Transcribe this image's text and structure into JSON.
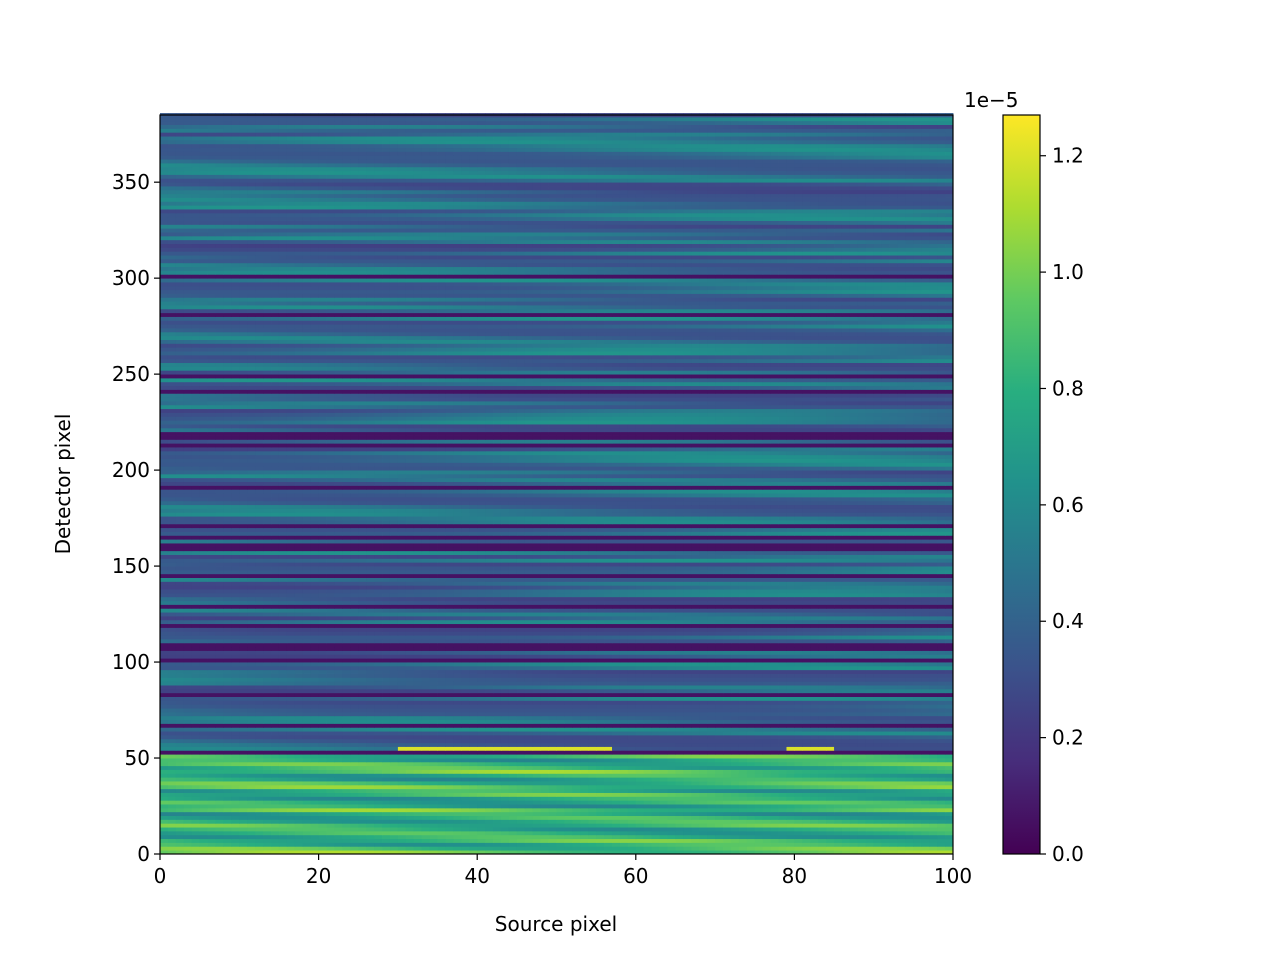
{
  "chart_data": {
    "type": "heatmap",
    "title": "",
    "xlabel": "Source pixel",
    "ylabel": "Detector pixel",
    "xlim": [
      0,
      100
    ],
    "ylim": [
      0,
      385
    ],
    "x_ticks": [
      0,
      20,
      40,
      60,
      80,
      100
    ],
    "y_ticks": [
      0,
      50,
      100,
      150,
      200,
      250,
      300,
      350
    ],
    "colorbar": {
      "colormap": "viridis",
      "range": [
        0.0,
        1.27e-05
      ],
      "offset_label": "1e−5",
      "ticks": [
        0.0,
        0.2,
        0.4,
        0.6,
        0.8,
        1.0,
        1.2
      ],
      "tick_labels": [
        "0.0",
        "0.2",
        "0.4",
        "0.6",
        "0.8",
        "1.0",
        "1.2"
      ]
    },
    "data_summary": {
      "low_band_rows": [
        0,
        52
      ],
      "low_band_level": 0.8,
      "low_band_max": 1.2,
      "upper_level": 0.3,
      "upper_streak_level": 0.6,
      "dark_rows": [
        53,
        67,
        82,
        100,
        107,
        109,
        118,
        128,
        145,
        158,
        160,
        165,
        170,
        190,
        213,
        216,
        219,
        240,
        248,
        281,
        300
      ],
      "bright_row": 55,
      "bright_row_level": 1.2
    }
  }
}
